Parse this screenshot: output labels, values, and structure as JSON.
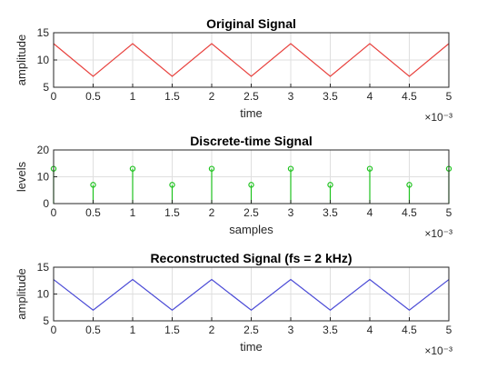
{
  "chart_data": [
    {
      "type": "line",
      "title": "Original Signal",
      "xlabel": "time",
      "ylabel": "amplitude",
      "x_exponent_label": "×10⁻³",
      "xlim": [
        0,
        5
      ],
      "ylim": [
        5,
        15
      ],
      "xticks": [
        "0",
        "0.5",
        "1",
        "1.5",
        "2",
        "2.5",
        "3",
        "3.5",
        "4",
        "4.5",
        "5"
      ],
      "yticks": [
        "5",
        "10",
        "15"
      ],
      "grid": true,
      "color": "#e8413d",
      "series": [
        {
          "x": [
            0,
            0.5,
            1,
            1.5,
            2,
            2.5,
            3,
            3.5,
            4,
            4.5,
            5
          ],
          "y": [
            13,
            7,
            13,
            7,
            13,
            7,
            13,
            7,
            13,
            7,
            13
          ]
        }
      ]
    },
    {
      "type": "stem",
      "title": "Discrete-time Signal",
      "xlabel": "samples",
      "ylabel": "levels",
      "x_exponent_label": "×10⁻³",
      "xlim": [
        0,
        5
      ],
      "ylim": [
        0,
        20
      ],
      "xticks": [
        "0",
        "0.5",
        "1",
        "1.5",
        "2",
        "2.5",
        "3",
        "3.5",
        "4",
        "4.5",
        "5"
      ],
      "yticks": [
        "0",
        "10",
        "20"
      ],
      "grid": true,
      "color": "#1ec21e",
      "series": [
        {
          "x": [
            0,
            0.5,
            1,
            1.5,
            2,
            2.5,
            3,
            3.5,
            4,
            4.5,
            5
          ],
          "y": [
            13,
            7,
            13,
            7,
            13,
            7,
            13,
            7,
            13,
            7,
            13
          ]
        }
      ]
    },
    {
      "type": "line",
      "title": "Reconstructed Signal (fs = 2 kHz)",
      "xlabel": "time",
      "ylabel": "amplitude",
      "x_exponent_label": "×10⁻³",
      "xlim": [
        0,
        5
      ],
      "ylim": [
        5,
        15
      ],
      "xticks": [
        "0",
        "0.5",
        "1",
        "1.5",
        "2",
        "2.5",
        "3",
        "3.5",
        "4",
        "4.5",
        "5"
      ],
      "yticks": [
        "5",
        "10",
        "15"
      ],
      "grid": true,
      "color": "#4a4ad6",
      "series": [
        {
          "x": [
            0,
            0.5,
            1,
            1.5,
            2,
            2.5,
            3,
            3.5,
            4,
            4.5,
            5
          ],
          "y": [
            12.7,
            7,
            12.7,
            7,
            12.7,
            7,
            12.7,
            7,
            12.7,
            7,
            12.7
          ]
        }
      ]
    }
  ]
}
